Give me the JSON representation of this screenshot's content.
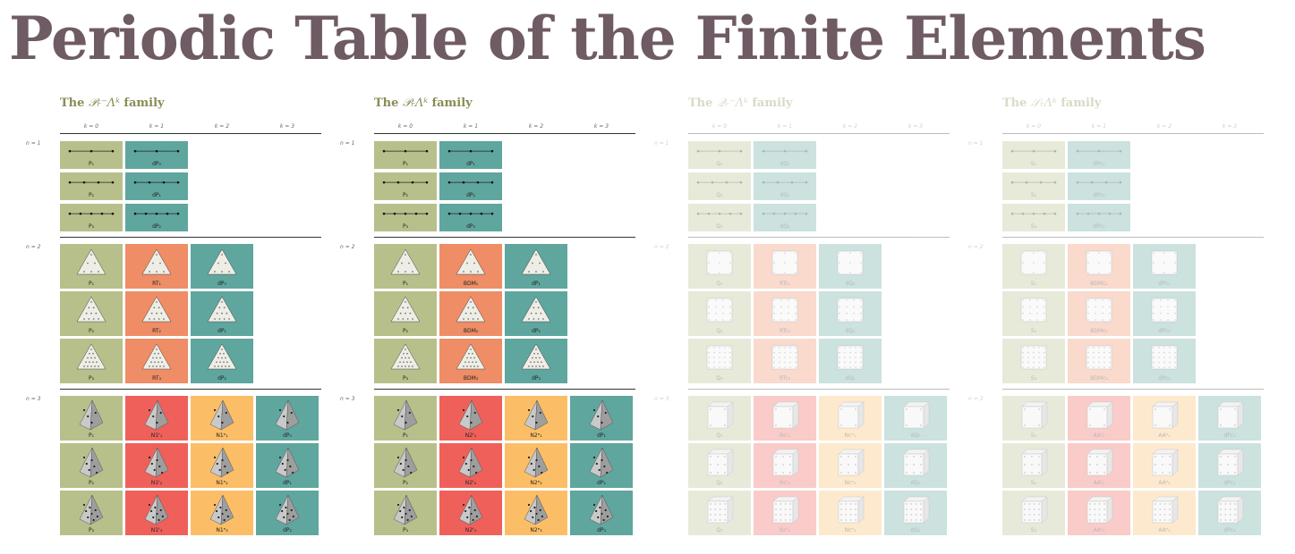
{
  "title": "Periodic Table of the Finite Elements",
  "colors": {
    "title": "#6f5b63",
    "family_title": "#8a8c55",
    "green": "#b7c08a",
    "teal": "#5fa69e",
    "orange": "#ee8d66",
    "red": "#ef605b",
    "yellow": "#fbbe66"
  },
  "families": [
    {
      "title_math": "𝒫ᵣ⁻Λᵏ",
      "title_text": "family",
      "title_prefix": "The",
      "faded": false,
      "k_labels": [
        "k = 0",
        "k = 1",
        "k = 2",
        "k = 3"
      ],
      "n_labels": [
        "n = 1",
        "n = 2",
        "n = 3"
      ],
      "groups": [
        [
          [
            {
              "label": "P₁",
              "color": "green",
              "icon": "segment-icon"
            },
            {
              "label": "dP₀",
              "color": "teal",
              "icon": "segment-icon"
            }
          ],
          [
            {
              "label": "P₂",
              "color": "green",
              "icon": "segment-icon"
            },
            {
              "label": "dP₁",
              "color": "teal",
              "icon": "segment-icon"
            }
          ],
          [
            {
              "label": "P₃",
              "color": "green",
              "icon": "segment-icon"
            },
            {
              "label": "dP₂",
              "color": "teal",
              "icon": "segment-icon"
            }
          ]
        ],
        [
          [
            {
              "label": "P₁",
              "color": "green",
              "icon": "triangle-icon"
            },
            {
              "label": "RT₁",
              "color": "orange",
              "icon": "triangle-icon"
            },
            {
              "label": "dP₀",
              "color": "teal",
              "icon": "triangle-icon"
            }
          ],
          [
            {
              "label": "P₂",
              "color": "green",
              "icon": "triangle-icon"
            },
            {
              "label": "RT₂",
              "color": "orange",
              "icon": "triangle-icon"
            },
            {
              "label": "dP₁",
              "color": "teal",
              "icon": "triangle-icon"
            }
          ],
          [
            {
              "label": "P₃",
              "color": "green",
              "icon": "triangle-icon"
            },
            {
              "label": "RT₃",
              "color": "orange",
              "icon": "triangle-icon"
            },
            {
              "label": "dP₂",
              "color": "teal",
              "icon": "triangle-icon"
            }
          ]
        ],
        [
          [
            {
              "label": "P₁",
              "color": "green",
              "icon": "tetrahedron-icon"
            },
            {
              "label": "N1ᶠ₁",
              "color": "red",
              "icon": "tetrahedron-icon"
            },
            {
              "label": "N1ᵉ₁",
              "color": "yellow",
              "icon": "tetrahedron-icon"
            },
            {
              "label": "dP₀",
              "color": "teal",
              "icon": "tetrahedron-icon"
            }
          ],
          [
            {
              "label": "P₂",
              "color": "green",
              "icon": "tetrahedron-icon"
            },
            {
              "label": "N1ᶠ₂",
              "color": "red",
              "icon": "tetrahedron-icon"
            },
            {
              "label": "N1ᵉ₂",
              "color": "yellow",
              "icon": "tetrahedron-icon"
            },
            {
              "label": "dP₁",
              "color": "teal",
              "icon": "tetrahedron-icon"
            }
          ],
          [
            {
              "label": "P₃",
              "color": "green",
              "icon": "tetrahedron-icon"
            },
            {
              "label": "N1ᶠ₃",
              "color": "red",
              "icon": "tetrahedron-icon"
            },
            {
              "label": "N1ᵉ₃",
              "color": "yellow",
              "icon": "tetrahedron-icon"
            },
            {
              "label": "dP₂",
              "color": "teal",
              "icon": "tetrahedron-icon"
            }
          ]
        ]
      ]
    },
    {
      "title_math": "𝒫ᵣΛᵏ",
      "title_text": "family",
      "title_prefix": "The",
      "faded": false,
      "k_labels": [
        "k = 0",
        "k = 1",
        "k = 2",
        "k = 3"
      ],
      "n_labels": [
        "n = 1",
        "n = 2",
        "n = 3"
      ],
      "groups": [
        [
          [
            {
              "label": "P₁",
              "color": "green",
              "icon": "segment-icon"
            },
            {
              "label": "dP₁",
              "color": "teal",
              "icon": "segment-icon"
            }
          ],
          [
            {
              "label": "P₂",
              "color": "green",
              "icon": "segment-icon"
            },
            {
              "label": "dP₂",
              "color": "teal",
              "icon": "segment-icon"
            }
          ],
          [
            {
              "label": "P₃",
              "color": "green",
              "icon": "segment-icon"
            },
            {
              "label": "dP₃",
              "color": "teal",
              "icon": "segment-icon"
            }
          ]
        ],
        [
          [
            {
              "label": "P₁",
              "color": "green",
              "icon": "triangle-icon"
            },
            {
              "label": "BDM₁",
              "color": "orange",
              "icon": "triangle-icon"
            },
            {
              "label": "dP₁",
              "color": "teal",
              "icon": "triangle-icon"
            }
          ],
          [
            {
              "label": "P₂",
              "color": "green",
              "icon": "triangle-icon"
            },
            {
              "label": "BDM₂",
              "color": "orange",
              "icon": "triangle-icon"
            },
            {
              "label": "dP₂",
              "color": "teal",
              "icon": "triangle-icon"
            }
          ],
          [
            {
              "label": "P₃",
              "color": "green",
              "icon": "triangle-icon"
            },
            {
              "label": "BDM₃",
              "color": "orange",
              "icon": "triangle-icon"
            },
            {
              "label": "dP₃",
              "color": "teal",
              "icon": "triangle-icon"
            }
          ]
        ],
        [
          [
            {
              "label": "P₁",
              "color": "green",
              "icon": "tetrahedron-icon"
            },
            {
              "label": "N2ᶠ₁",
              "color": "red",
              "icon": "tetrahedron-icon"
            },
            {
              "label": "N2ᵉ₁",
              "color": "yellow",
              "icon": "tetrahedron-icon"
            },
            {
              "label": "dP₁",
              "color": "teal",
              "icon": "tetrahedron-icon"
            }
          ],
          [
            {
              "label": "P₂",
              "color": "green",
              "icon": "tetrahedron-icon"
            },
            {
              "label": "N2ᶠ₂",
              "color": "red",
              "icon": "tetrahedron-icon"
            },
            {
              "label": "N2ᵉ₂",
              "color": "yellow",
              "icon": "tetrahedron-icon"
            },
            {
              "label": "dP₂",
              "color": "teal",
              "icon": "tetrahedron-icon"
            }
          ],
          [
            {
              "label": "P₃",
              "color": "green",
              "icon": "tetrahedron-icon"
            },
            {
              "label": "N2ᶠ₃",
              "color": "red",
              "icon": "tetrahedron-icon"
            },
            {
              "label": "N2ᵉ₃",
              "color": "yellow",
              "icon": "tetrahedron-icon"
            },
            {
              "label": "dP₃",
              "color": "teal",
              "icon": "tetrahedron-icon"
            }
          ]
        ]
      ]
    },
    {
      "title_math": "𝒬ᵣ⁻Λᵏ",
      "title_text": "family",
      "title_prefix": "The",
      "faded": true,
      "k_labels": [
        "k = 0",
        "k = 1",
        "k = 2",
        "k = 3"
      ],
      "n_labels": [
        "n = 1",
        "n = 2",
        "n = 3"
      ],
      "groups": [
        [
          [
            {
              "label": "Q₁",
              "color": "green",
              "icon": "segment-icon"
            },
            {
              "label": "dQ₀",
              "color": "teal",
              "icon": "segment-icon"
            }
          ],
          [
            {
              "label": "Q₂",
              "color": "green",
              "icon": "segment-icon"
            },
            {
              "label": "dQ₁",
              "color": "teal",
              "icon": "segment-icon"
            }
          ],
          [
            {
              "label": "Q₃",
              "color": "green",
              "icon": "segment-icon"
            },
            {
              "label": "dQ₂",
              "color": "teal",
              "icon": "segment-icon"
            }
          ]
        ],
        [
          [
            {
              "label": "Q₁",
              "color": "green",
              "icon": "square-icon"
            },
            {
              "label": "RTc₁",
              "color": "orange",
              "icon": "square-icon"
            },
            {
              "label": "dQ₀",
              "color": "teal",
              "icon": "square-icon"
            }
          ],
          [
            {
              "label": "Q₂",
              "color": "green",
              "icon": "square-icon"
            },
            {
              "label": "RTc₂",
              "color": "orange",
              "icon": "square-icon"
            },
            {
              "label": "dQ₁",
              "color": "teal",
              "icon": "square-icon"
            }
          ],
          [
            {
              "label": "Q₃",
              "color": "green",
              "icon": "square-icon"
            },
            {
              "label": "RTc₃",
              "color": "orange",
              "icon": "square-icon"
            },
            {
              "label": "dQ₂",
              "color": "teal",
              "icon": "square-icon"
            }
          ]
        ],
        [
          [
            {
              "label": "Q₁",
              "color": "green",
              "icon": "cube-icon"
            },
            {
              "label": "Ncᶠ₁",
              "color": "red",
              "icon": "cube-icon"
            },
            {
              "label": "Ncᵉ₁",
              "color": "yellow",
              "icon": "cube-icon"
            },
            {
              "label": "dQ₀",
              "color": "teal",
              "icon": "cube-icon"
            }
          ],
          [
            {
              "label": "Q₂",
              "color": "green",
              "icon": "cube-icon"
            },
            {
              "label": "Ncᶠ₂",
              "color": "red",
              "icon": "cube-icon"
            },
            {
              "label": "Ncᵉ₂",
              "color": "yellow",
              "icon": "cube-icon"
            },
            {
              "label": "dQ₁",
              "color": "teal",
              "icon": "cube-icon"
            }
          ],
          [
            {
              "label": "Q₃",
              "color": "green",
              "icon": "cube-icon"
            },
            {
              "label": "Ncᶠ₃",
              "color": "red",
              "icon": "cube-icon"
            },
            {
              "label": "Ncᵉ₃",
              "color": "yellow",
              "icon": "cube-icon"
            },
            {
              "label": "dQ₂",
              "color": "teal",
              "icon": "cube-icon"
            }
          ]
        ]
      ]
    },
    {
      "title_math": "𝒮ᵣΛᵏ",
      "title_text": "family",
      "title_prefix": "The",
      "faded": true,
      "k_labels": [
        "k = 0",
        "k = 1",
        "k = 2",
        "k = 3"
      ],
      "n_labels": [
        "n = 1",
        "n = 2",
        "n = 3"
      ],
      "groups": [
        [
          [
            {
              "label": "S₁",
              "color": "green",
              "icon": "segment-icon"
            },
            {
              "label": "dPc₁",
              "color": "teal",
              "icon": "segment-icon"
            }
          ],
          [
            {
              "label": "S₂",
              "color": "green",
              "icon": "segment-icon"
            },
            {
              "label": "dPc₂",
              "color": "teal",
              "icon": "segment-icon"
            }
          ],
          [
            {
              "label": "S₃",
              "color": "green",
              "icon": "segment-icon"
            },
            {
              "label": "dPc₃",
              "color": "teal",
              "icon": "segment-icon"
            }
          ]
        ],
        [
          [
            {
              "label": "S₁",
              "color": "green",
              "icon": "square-icon"
            },
            {
              "label": "BDMc₁",
              "color": "orange",
              "icon": "square-icon"
            },
            {
              "label": "dPc₁",
              "color": "teal",
              "icon": "square-icon"
            }
          ],
          [
            {
              "label": "S₂",
              "color": "green",
              "icon": "square-icon"
            },
            {
              "label": "BDMc₂",
              "color": "orange",
              "icon": "square-icon"
            },
            {
              "label": "dPc₂",
              "color": "teal",
              "icon": "square-icon"
            }
          ],
          [
            {
              "label": "S₃",
              "color": "green",
              "icon": "square-icon"
            },
            {
              "label": "BDMc₃",
              "color": "orange",
              "icon": "square-icon"
            },
            {
              "label": "dPc₃",
              "color": "teal",
              "icon": "square-icon"
            }
          ]
        ],
        [
          [
            {
              "label": "S₁",
              "color": "green",
              "icon": "cube-icon"
            },
            {
              "label": "AAᶠ₁",
              "color": "red",
              "icon": "cube-icon"
            },
            {
              "label": "AAᵉ₁",
              "color": "yellow",
              "icon": "cube-icon"
            },
            {
              "label": "dPc₁",
              "color": "teal",
              "icon": "cube-icon"
            }
          ],
          [
            {
              "label": "S₂",
              "color": "green",
              "icon": "cube-icon"
            },
            {
              "label": "AAᶠ₂",
              "color": "red",
              "icon": "cube-icon"
            },
            {
              "label": "AAᵉ₂",
              "color": "yellow",
              "icon": "cube-icon"
            },
            {
              "label": "dPc₂",
              "color": "teal",
              "icon": "cube-icon"
            }
          ],
          [
            {
              "label": "S₃",
              "color": "green",
              "icon": "cube-icon"
            },
            {
              "label": "AAᶠ₃",
              "color": "red",
              "icon": "cube-icon"
            },
            {
              "label": "AAᵉ₃",
              "color": "yellow",
              "icon": "cube-icon"
            },
            {
              "label": "dPc₃",
              "color": "teal",
              "icon": "cube-icon"
            }
          ]
        ]
      ]
    }
  ]
}
